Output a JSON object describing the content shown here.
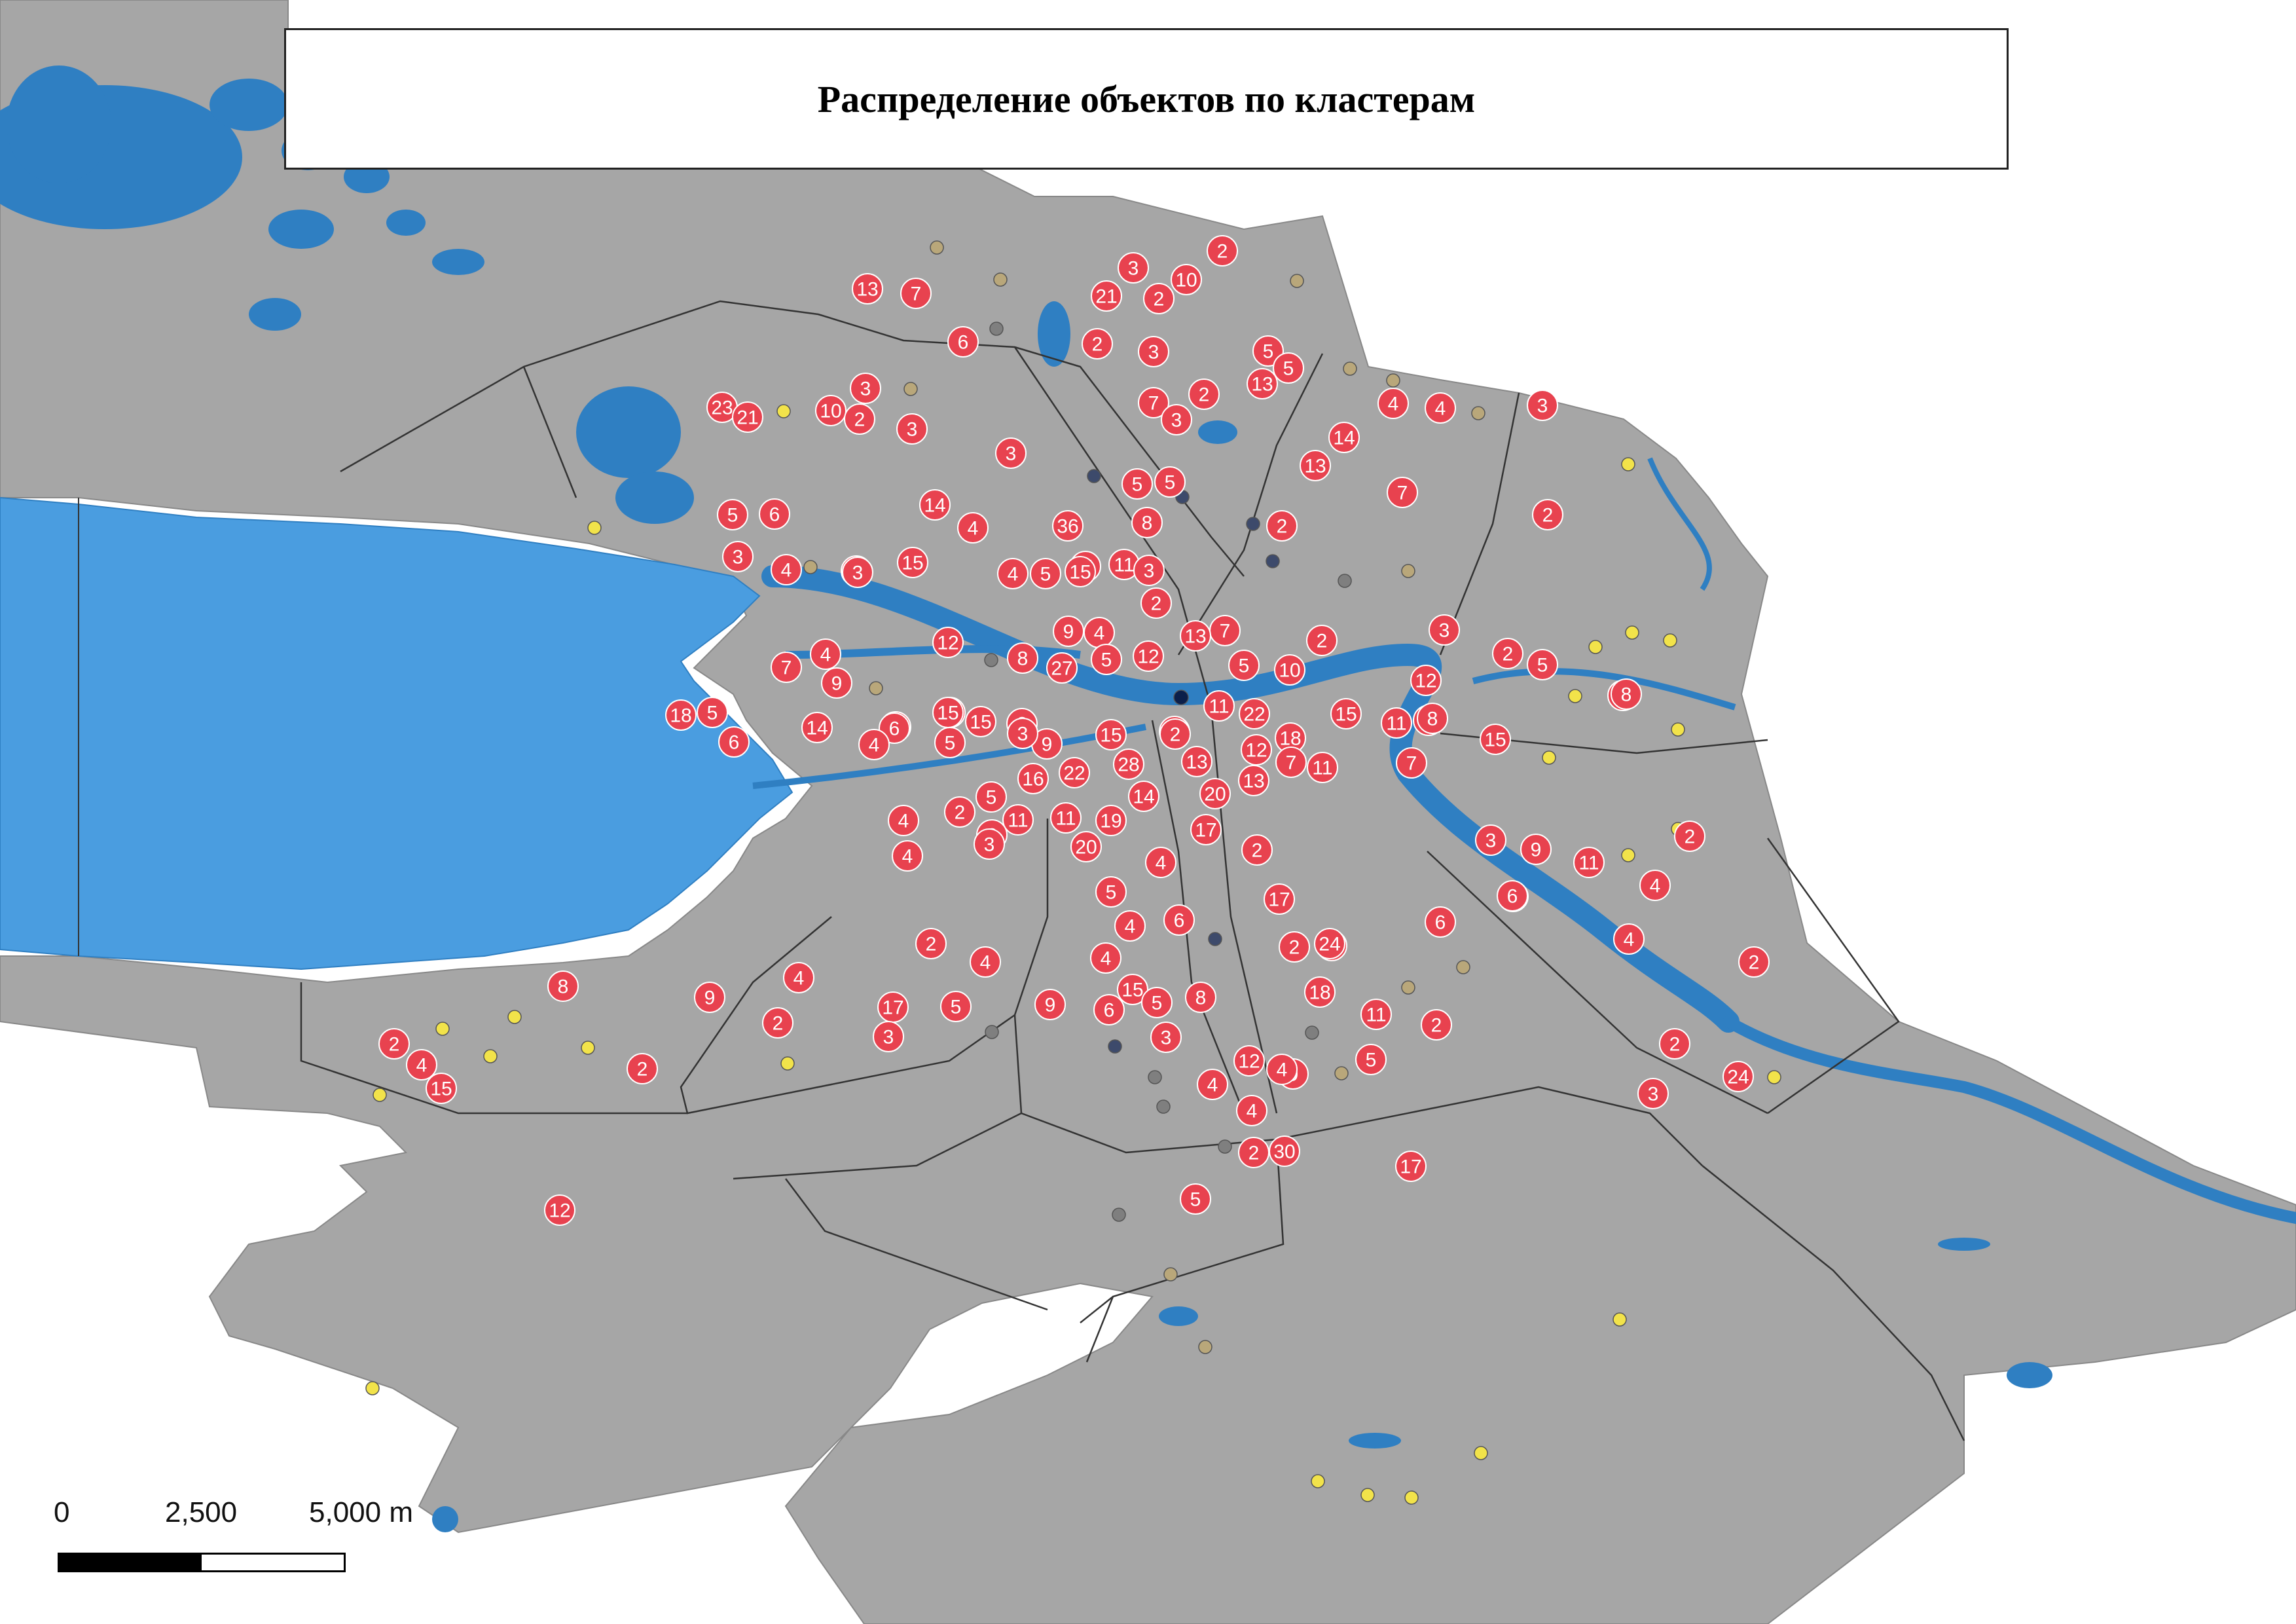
{
  "title": "Распределение объектов по кластерам",
  "scale_bar": {
    "labels": [
      "0",
      "2,500",
      "5,000 m"
    ]
  },
  "colors": {
    "sea": "#4a9de0",
    "water": "#2f7fc2",
    "land": "#a6a6a6",
    "boundary": "#333333",
    "cluster_marker": "#e8424f",
    "point_yellow": "#f2e34a",
    "point_tan": "#b9a77a",
    "point_gray": "#7f7f7f",
    "point_navy": "#3d4a6b",
    "point_dark_navy": "#0b1f4a"
  },
  "clusters": [
    13,
    7,
    3,
    10,
    2,
    21,
    2,
    6,
    2,
    3,
    5,
    5,
    13,
    23,
    21,
    10,
    3,
    2,
    3,
    7,
    2,
    3,
    4,
    4,
    3,
    3,
    14,
    13,
    5,
    5,
    6,
    14,
    36,
    4,
    8,
    2,
    5,
    3,
    7,
    2,
    4,
    4,
    15,
    4,
    11,
    5,
    11,
    3,
    2,
    3,
    15,
    7,
    12,
    9,
    4,
    13,
    3,
    7,
    4,
    2,
    5,
    8,
    27,
    5,
    12,
    10,
    5,
    9,
    12,
    2,
    5,
    8,
    18,
    5,
    11,
    22,
    14,
    14,
    8,
    15,
    3,
    15,
    15,
    2,
    18,
    6,
    11,
    8,
    15,
    2,
    4,
    5,
    9,
    7,
    15,
    12,
    6,
    3,
    13,
    2,
    16,
    22,
    28,
    7,
    11,
    20,
    13,
    5,
    4,
    14,
    2,
    11,
    11,
    19,
    3,
    17,
    20,
    2,
    4,
    3,
    9,
    11,
    2,
    4,
    5,
    4,
    2,
    13,
    6,
    17,
    6,
    4,
    5,
    4,
    2,
    2,
    4,
    4,
    24,
    4,
    2,
    6,
    8,
    9,
    6,
    18,
    11,
    15,
    5,
    8,
    17,
    2,
    9,
    5,
    2,
    3,
    12,
    9,
    4,
    3,
    4,
    5,
    4,
    2,
    3,
    24,
    12,
    15,
    2,
    17,
    2,
    5,
    2,
    4,
    30
  ]
}
